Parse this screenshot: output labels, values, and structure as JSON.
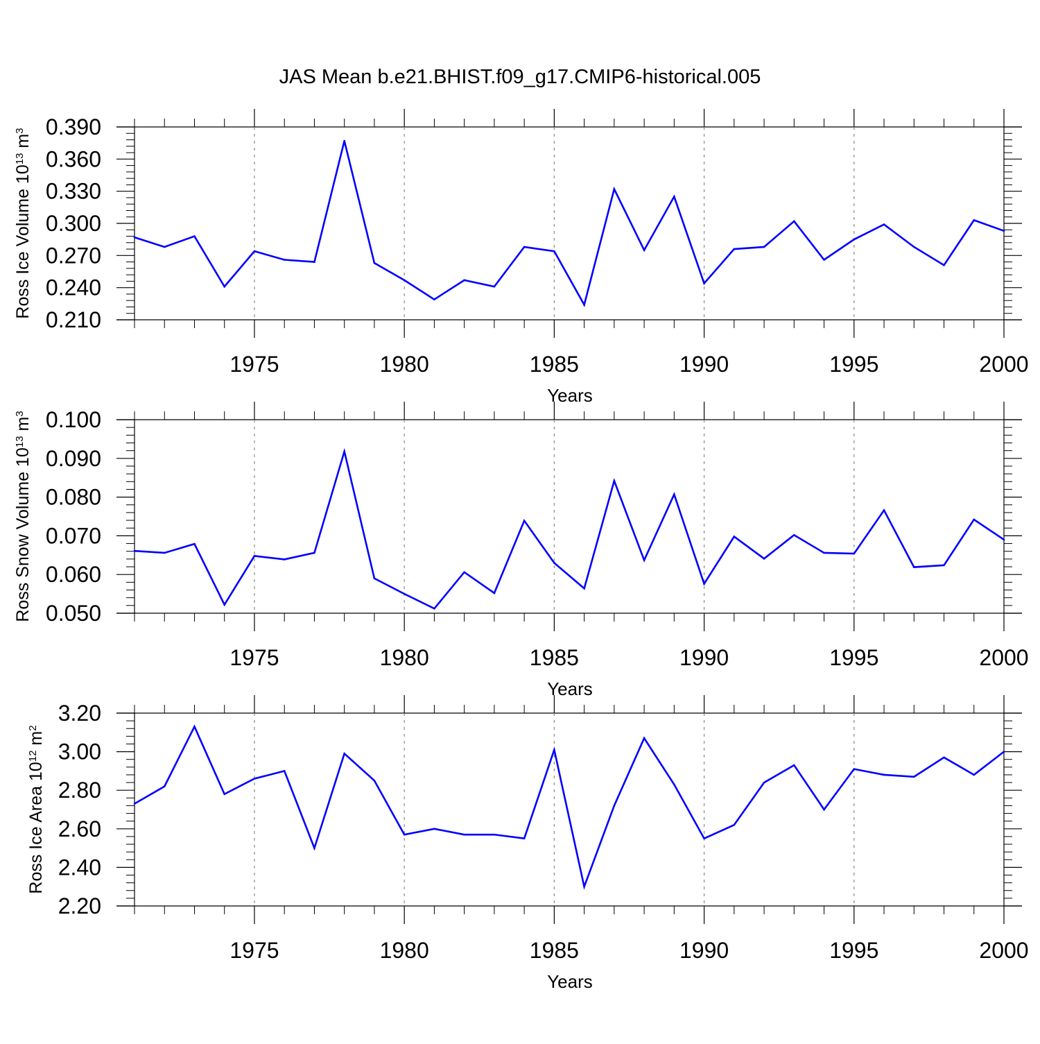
{
  "title": "JAS Mean b.e21.BHIST.f09_g17.CMIP6-historical.005",
  "chart_data": [
    {
      "type": "line",
      "title": "JAS Mean b.e21.BHIST.f09_g17.CMIP6-historical.005",
      "xlabel": "Years",
      "ylabel_main": "Ross Ice Volume 10",
      "ylabel_exp": "13",
      "ylabel_unit": " m",
      "ylabel_unit_exp": "3",
      "xlim": [
        1971,
        2000
      ],
      "ylim": [
        0.21,
        0.39
      ],
      "x_ticks": [
        "1975",
        "1980",
        "1985",
        "1990",
        "1995",
        "2000"
      ],
      "y_ticks": [
        "0.210",
        "0.240",
        "0.270",
        "0.300",
        "0.330",
        "0.360",
        "0.390"
      ],
      "line_color": "#0000ff",
      "series": [
        {
          "name": "Ross Ice Volume",
          "x": [
            1971,
            1972,
            1973,
            1974,
            1975,
            1976,
            1977,
            1978,
            1979,
            1980,
            1981,
            1982,
            1983,
            1984,
            1985,
            1986,
            1987,
            1988,
            1989,
            1990,
            1991,
            1992,
            1993,
            1994,
            1995,
            1996,
            1997,
            1998,
            1999,
            2000
          ],
          "values": [
            0.287,
            0.278,
            0.288,
            0.241,
            0.274,
            0.266,
            0.264,
            0.377,
            0.263,
            0.247,
            0.229,
            0.247,
            0.241,
            0.278,
            0.274,
            0.224,
            0.332,
            0.275,
            0.325,
            0.244,
            0.276,
            0.278,
            0.302,
            0.266,
            0.285,
            0.299,
            0.278,
            0.261,
            0.303,
            0.293
          ]
        }
      ]
    },
    {
      "type": "line",
      "xlabel": "Years",
      "ylabel_main": "Ross Snow Volume 10",
      "ylabel_exp": "13",
      "ylabel_unit": " m",
      "ylabel_unit_exp": "3",
      "xlim": [
        1971,
        2000
      ],
      "ylim": [
        0.05,
        0.1
      ],
      "x_ticks": [
        "1975",
        "1980",
        "1985",
        "1990",
        "1995",
        "2000"
      ],
      "y_ticks": [
        "0.050",
        "0.060",
        "0.070",
        "0.080",
        "0.090",
        "0.100"
      ],
      "line_color": "#0000ff",
      "series": [
        {
          "name": "Ross Snow Volume",
          "x": [
            1971,
            1972,
            1973,
            1974,
            1975,
            1976,
            1977,
            1978,
            1979,
            1980,
            1981,
            1982,
            1983,
            1984,
            1985,
            1986,
            1987,
            1988,
            1989,
            1990,
            1991,
            1992,
            1993,
            1994,
            1995,
            1996,
            1997,
            1998,
            1999,
            2000
          ],
          "values": [
            0.0661,
            0.0656,
            0.0679,
            0.0522,
            0.0648,
            0.0639,
            0.0656,
            0.0918,
            0.059,
            0.055,
            0.0512,
            0.0606,
            0.0552,
            0.0739,
            0.063,
            0.0564,
            0.0842,
            0.0637,
            0.0807,
            0.0576,
            0.0698,
            0.0641,
            0.0702,
            0.0656,
            0.0654,
            0.0766,
            0.0619,
            0.0624,
            0.0742,
            0.069
          ]
        }
      ]
    },
    {
      "type": "line",
      "xlabel": "Years",
      "ylabel_main": "Ross Ice Area 10",
      "ylabel_exp": "12",
      "ylabel_unit": " m",
      "ylabel_unit_exp": "2",
      "xlim": [
        1971,
        2000
      ],
      "ylim": [
        2.2,
        3.2
      ],
      "x_ticks": [
        "1975",
        "1980",
        "1985",
        "1990",
        "1995",
        "2000"
      ],
      "y_ticks": [
        "2.20",
        "2.40",
        "2.60",
        "2.80",
        "3.00",
        "3.20"
      ],
      "line_color": "#0000ff",
      "series": [
        {
          "name": "Ross Ice Area",
          "x": [
            1971,
            1972,
            1973,
            1974,
            1975,
            1976,
            1977,
            1978,
            1979,
            1980,
            1981,
            1982,
            1983,
            1984,
            1985,
            1986,
            1987,
            1988,
            1989,
            1990,
            1991,
            1992,
            1993,
            1994,
            1995,
            1996,
            1997,
            1998,
            1999,
            2000
          ],
          "values": [
            2.73,
            2.82,
            3.13,
            2.78,
            2.86,
            2.9,
            2.5,
            2.99,
            2.85,
            2.57,
            2.6,
            2.57,
            2.57,
            2.55,
            3.01,
            2.3,
            2.72,
            3.07,
            2.83,
            2.55,
            2.62,
            2.84,
            2.93,
            2.7,
            2.91,
            2.88,
            2.87,
            2.97,
            2.88,
            3.0
          ]
        }
      ]
    }
  ]
}
